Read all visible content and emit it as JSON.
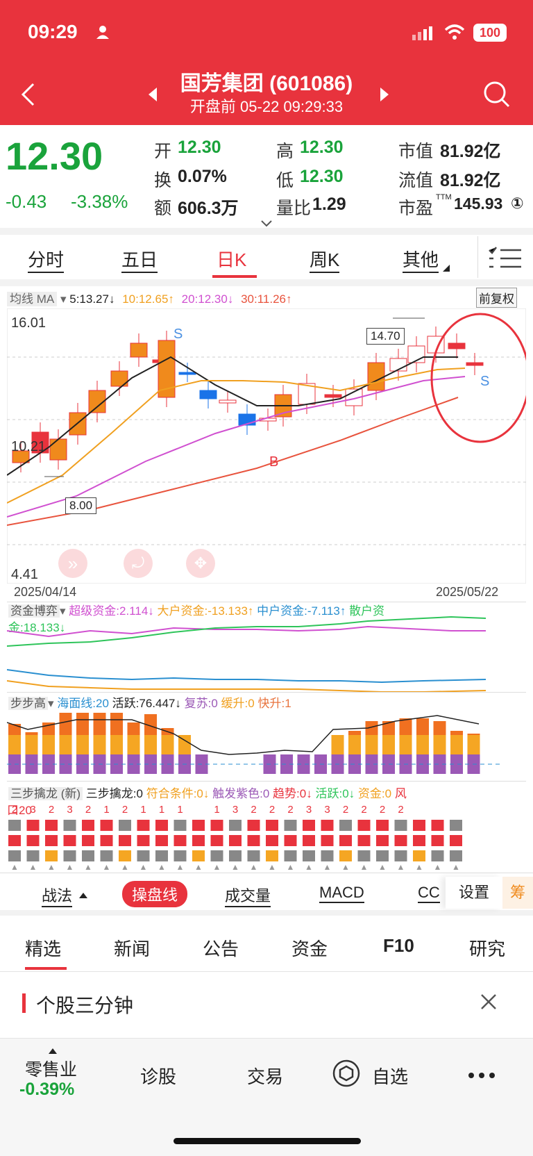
{
  "status": {
    "time": "09:29",
    "battery": "100"
  },
  "header": {
    "title": "国芳集团 (601086)",
    "subtitle": "开盘前 05-22 09:29:33"
  },
  "quote": {
    "price": "12.30",
    "change": "-0.43",
    "change_pct": "-3.38%",
    "open_label": "开",
    "open": "12.30",
    "turnover_label": "换",
    "turnover": "0.07%",
    "amount_label": "额",
    "amount": "606.3万",
    "high_label": "高",
    "high": "12.30",
    "low_label": "低",
    "low": "12.30",
    "vol_ratio_label": "量比",
    "vol_ratio": "1.29",
    "mcap_label": "市值",
    "mcap": "81.92亿",
    "float_label": "流值",
    "float": "81.92亿",
    "pe_label": "市盈",
    "pe_sup": "TTM",
    "pe": "145.93",
    "pe_mark": "①"
  },
  "tabs": [
    "分时",
    "五日",
    "日K",
    "周K",
    "其他"
  ],
  "ma": {
    "label": "均线 MA",
    "ma5": "5:13.27↓",
    "ma10": "10:12.65↑",
    "ma20": "20:12.30↓",
    "ma30": "30:11.26↑",
    "adjust": "前复权"
  },
  "kline": {
    "high_label": "16.01",
    "mid_label": "10.21",
    "low_label": "4.41",
    "start_date": "2025/04/14",
    "end_date": "2025/05/22",
    "callout_high": "14.70",
    "callout_low": "8.00",
    "sell_mark": "S",
    "buy_mark": "B"
  },
  "fund": {
    "title": "资金博弈",
    "super": "超级资金:2.114↓",
    "large": "大户资金:-13.133↑",
    "mid": "中户资金:-7.113↑",
    "retail_a": "散户资",
    "retail_b": "金:18.133↓"
  },
  "bbg": {
    "title": "步步高",
    "sea": "海面线:20",
    "active": "活跃:76.447↓",
    "recover": "复苏:0",
    "slow": "缓升:0",
    "fast": "快升:1"
  },
  "ssql": {
    "title": "三步擒龙 (新)",
    "a": "三步擒龙:0",
    "b": "符合条件:0↓",
    "c": "触发紫色:0",
    "d": "趋势:0↓",
    "e": "活跃:0↓",
    "f": "资金:0",
    "g": "风",
    "first": "口20",
    "digits": [
      "2",
      "3",
      "2",
      "3",
      "2",
      "1",
      "2",
      "1",
      "1",
      "1",
      "",
      "1",
      "3",
      "2",
      "2",
      "2",
      "3",
      "3",
      "2",
      "2",
      "2",
      "2"
    ]
  },
  "tools": {
    "strategy": "战法",
    "trade_line": "操盘线",
    "volume": "成交量",
    "macd": "MACD",
    "cc": "CC",
    "settings": "设置",
    "chip": "筹"
  },
  "news_tabs": [
    "精选",
    "新闻",
    "公告",
    "资金",
    "F10",
    "研究"
  ],
  "card": {
    "title": "个股三分钟"
  },
  "bottom": {
    "sector": "零售业",
    "sector_change": "-0.39%",
    "diag": "诊股",
    "trade": "交易",
    "watch": "自选"
  },
  "colors": {
    "red": "#e8333d",
    "green": "#1aa33b",
    "orange": "#f08a1c"
  }
}
